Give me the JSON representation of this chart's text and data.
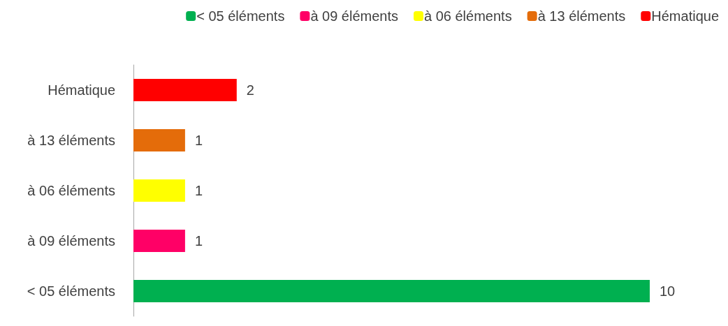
{
  "chart_data": {
    "type": "bar",
    "orientation": "horizontal",
    "stacked": true,
    "categories": [
      "Hématique",
      "à 13 éléments",
      "à 06 éléments",
      "à 09 éléments",
      "< 05 éléments"
    ],
    "series": [
      {
        "name": "< 05 éléments",
        "color": "#00b050",
        "values": [
          null,
          null,
          null,
          null,
          10
        ]
      },
      {
        "name": "à 09 éléments",
        "color": "#ff0066",
        "values": [
          null,
          null,
          null,
          1,
          null
        ]
      },
      {
        "name": "à 06 éléments",
        "color": "#ffff00",
        "values": [
          null,
          null,
          1,
          null,
          null
        ]
      },
      {
        "name": "à 13 éléments",
        "color": "#e46c0a",
        "values": [
          null,
          1,
          null,
          null,
          null
        ]
      },
      {
        "name": "Hématique",
        "color": "#ff0000",
        "values": [
          2,
          null,
          null,
          null,
          null
        ]
      }
    ],
    "data_labels": true,
    "legend": "top right",
    "tick_labels": "y"
  }
}
